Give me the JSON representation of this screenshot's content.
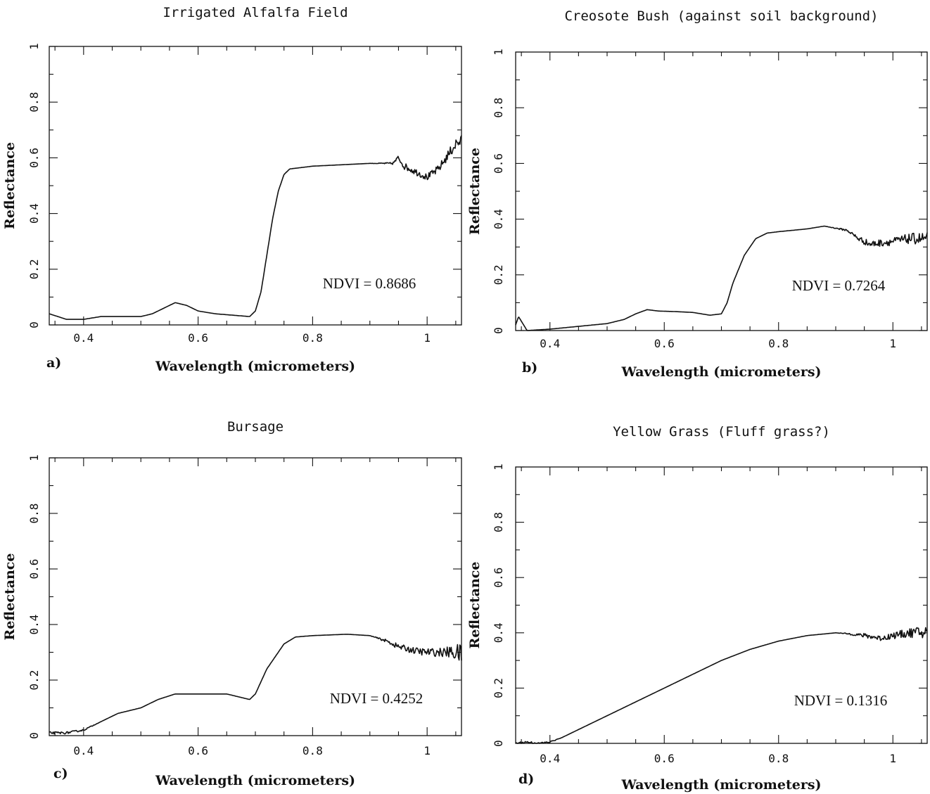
{
  "chart_data": [
    {
      "panel": "a)",
      "type": "line",
      "title": "Irrigated Alfalfa Field",
      "xlabel": "Wavelength (micrometers)",
      "ylabel": "Reflectance",
      "xlim": [
        0.34,
        1.06
      ],
      "ylim": [
        0,
        1
      ],
      "xticks": [
        0.4,
        0.6,
        0.8,
        1
      ],
      "xtick_labels": [
        "0.4",
        "0.6",
        "0.8",
        "1"
      ],
      "yticks": [
        0,
        0.2,
        0.4,
        0.6,
        0.8,
        1
      ],
      "ytick_labels": [
        "0",
        "0.2",
        "0.4",
        "0.6",
        "0.8",
        "1"
      ],
      "annotation": "NDVI = 0.8686",
      "series": [
        {
          "x": [
            0.34,
            0.37,
            0.4,
            0.43,
            0.47,
            0.5,
            0.52,
            0.54,
            0.56,
            0.58,
            0.6,
            0.63,
            0.66,
            0.69,
            0.7,
            0.71,
            0.72,
            0.73,
            0.74,
            0.75,
            0.76,
            0.78,
            0.8,
            0.85,
            0.9,
            0.94,
            0.95,
            0.96,
            0.98,
            1.0,
            1.02,
            1.04,
            1.05,
            1.06
          ],
          "y": [
            0.04,
            0.02,
            0.02,
            0.03,
            0.03,
            0.03,
            0.04,
            0.06,
            0.08,
            0.07,
            0.05,
            0.04,
            0.035,
            0.03,
            0.05,
            0.12,
            0.25,
            0.38,
            0.48,
            0.54,
            0.56,
            0.565,
            0.57,
            0.575,
            0.58,
            0.58,
            0.6,
            0.57,
            0.55,
            0.53,
            0.56,
            0.62,
            0.65,
            0.66
          ],
          "noise": [
            0,
            0,
            0,
            0,
            0,
            0,
            0,
            0,
            0,
            0,
            0,
            0,
            0,
            0,
            0,
            0,
            0,
            0,
            0,
            0,
            0,
            0,
            0,
            0,
            0,
            0.004,
            0.01,
            0.012,
            0.012,
            0.012,
            0.014,
            0.018,
            0.022,
            0.022
          ]
        }
      ]
    },
    {
      "panel": "b)",
      "type": "line",
      "title": "Creosote Bush (against soil background)",
      "xlabel": "Wavelength (micrometers)",
      "ylabel": "Reflectance",
      "xlim": [
        0.34,
        1.06
      ],
      "ylim": [
        0,
        1
      ],
      "xticks": [
        0.4,
        0.6,
        0.8,
        1
      ],
      "xtick_labels": [
        "0.4",
        "0.6",
        "0.8",
        "1"
      ],
      "yticks": [
        0,
        0.2,
        0.4,
        0.6,
        0.8,
        1
      ],
      "ytick_labels": [
        "0",
        "0.2",
        "0.4",
        "0.6",
        "0.8",
        "1"
      ],
      "annotation": "NDVI = 0.7264",
      "series": [
        {
          "x": [
            0.34,
            0.345,
            0.36,
            0.4,
            0.45,
            0.5,
            0.53,
            0.55,
            0.57,
            0.59,
            0.62,
            0.65,
            0.68,
            0.7,
            0.71,
            0.72,
            0.74,
            0.76,
            0.78,
            0.8,
            0.85,
            0.88,
            0.92,
            0.94,
            0.96,
            1.0,
            1.03,
            1.06
          ],
          "y": [
            0.02,
            0.05,
            0.0,
            0.005,
            0.015,
            0.025,
            0.04,
            0.06,
            0.075,
            0.07,
            0.068,
            0.065,
            0.055,
            0.06,
            0.1,
            0.17,
            0.27,
            0.33,
            0.35,
            0.355,
            0.365,
            0.375,
            0.36,
            0.33,
            0.31,
            0.32,
            0.33,
            0.33
          ],
          "noise": [
            0,
            0,
            0,
            0,
            0,
            0,
            0,
            0,
            0,
            0,
            0,
            0,
            0,
            0,
            0,
            0,
            0,
            0,
            0,
            0,
            0,
            0,
            0.004,
            0.01,
            0.012,
            0.014,
            0.018,
            0.025
          ]
        }
      ]
    },
    {
      "panel": "c)",
      "type": "line",
      "title": "Bursage",
      "xlabel": "Wavelength (micrometers)",
      "ylabel": "Reflectance",
      "xlim": [
        0.34,
        1.06
      ],
      "ylim": [
        0,
        1
      ],
      "xticks": [
        0.4,
        0.6,
        0.8,
        1
      ],
      "xtick_labels": [
        "0.4",
        "0.6",
        "0.8",
        "1"
      ],
      "yticks": [
        0,
        0.2,
        0.4,
        0.6,
        0.8,
        1
      ],
      "ytick_labels": [
        "0",
        "0.2",
        "0.4",
        "0.6",
        "0.8",
        "1"
      ],
      "annotation": "NDVI = 0.4252",
      "series": [
        {
          "x": [
            0.34,
            0.37,
            0.4,
            0.43,
            0.46,
            0.5,
            0.53,
            0.56,
            0.6,
            0.65,
            0.67,
            0.69,
            0.7,
            0.72,
            0.75,
            0.77,
            0.8,
            0.86,
            0.9,
            0.93,
            0.95,
            0.98,
            1.0,
            1.03,
            1.05,
            1.06
          ],
          "y": [
            0.01,
            0.01,
            0.02,
            0.05,
            0.08,
            0.1,
            0.13,
            0.15,
            0.15,
            0.15,
            0.14,
            0.13,
            0.15,
            0.24,
            0.33,
            0.355,
            0.36,
            0.365,
            0.36,
            0.34,
            0.32,
            0.305,
            0.3,
            0.3,
            0.3,
            0.29
          ],
          "noise": [
            0.004,
            0.004,
            0.003,
            0,
            0,
            0,
            0,
            0,
            0,
            0,
            0,
            0,
            0,
            0,
            0,
            0,
            0,
            0,
            0,
            0.006,
            0.01,
            0.012,
            0.014,
            0.016,
            0.03,
            0.04
          ]
        }
      ]
    },
    {
      "panel": "d)",
      "type": "line",
      "title": "Yellow Grass (Fluff grass?)",
      "xlabel": "Wavelength (micrometers)",
      "ylabel": "Reflectance",
      "xlim": [
        0.34,
        1.06
      ],
      "ylim": [
        0,
        1
      ],
      "xticks": [
        0.4,
        0.6,
        0.8,
        1
      ],
      "xtick_labels": [
        "0.4",
        "0.6",
        "0.8",
        "1"
      ],
      "yticks": [
        0,
        0.2,
        0.4,
        0.6,
        0.8,
        1
      ],
      "ytick_labels": [
        "0",
        "0.2",
        "0.4",
        "0.6",
        "0.8",
        "1"
      ],
      "annotation": "NDVI = 0.1316",
      "series": [
        {
          "x": [
            0.34,
            0.36,
            0.38,
            0.4,
            0.42,
            0.45,
            0.5,
            0.55,
            0.6,
            0.65,
            0.7,
            0.75,
            0.8,
            0.85,
            0.9,
            0.93,
            0.95,
            0.98,
            1.0,
            1.03,
            1.05,
            1.06
          ],
          "y": [
            0.0,
            0.005,
            0.0,
            0.005,
            0.02,
            0.05,
            0.1,
            0.15,
            0.2,
            0.25,
            0.3,
            0.34,
            0.37,
            0.39,
            0.4,
            0.395,
            0.39,
            0.38,
            0.39,
            0.4,
            0.4,
            0.4
          ],
          "noise": [
            0.004,
            0.004,
            0.003,
            0.003,
            0,
            0,
            0,
            0,
            0,
            0,
            0,
            0,
            0,
            0,
            0,
            0.004,
            0.008,
            0.01,
            0.012,
            0.016,
            0.025,
            0.03
          ]
        }
      ]
    }
  ]
}
